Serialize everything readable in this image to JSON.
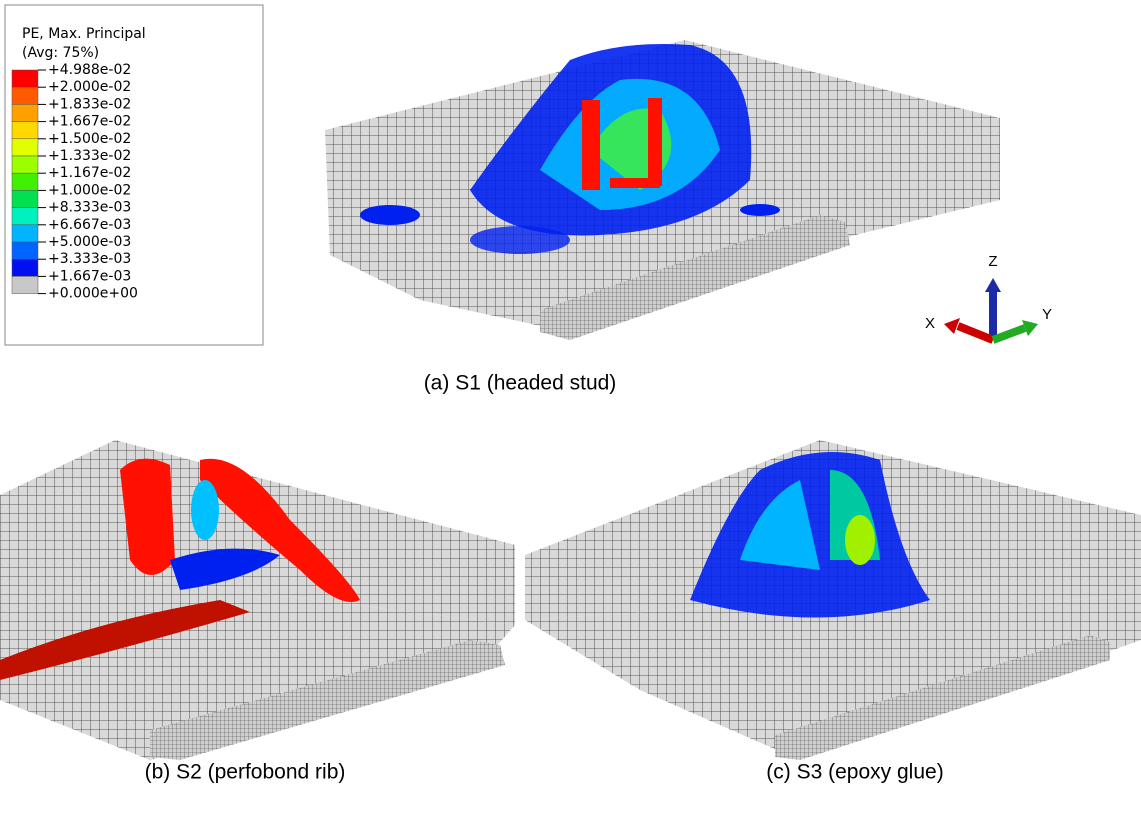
{
  "legend": {
    "title": "PE, Max. Principal",
    "subtitle": "(Avg: 75%)",
    "labels": [
      "+4.988e-02",
      "+2.000e-02",
      "+1.833e-02",
      "+1.667e-02",
      "+1.500e-02",
      "+1.333e-02",
      "+1.167e-02",
      "+1.000e-02",
      "+8.333e-03",
      "+6.667e-03",
      "+5.000e-03",
      "+3.333e-03",
      "+1.667e-03",
      "+0.000e+00"
    ],
    "colors": [
      "#ff0000",
      "#ff5a00",
      "#ffa000",
      "#ffd800",
      "#e0ff00",
      "#9cff00",
      "#40f000",
      "#00e050",
      "#00f0c0",
      "#00b4ff",
      "#0064ff",
      "#0010f0",
      "#c8c8c8"
    ]
  },
  "triad": {
    "z": "Z",
    "x": "X",
    "y": "Y"
  },
  "panels": [
    {
      "caption": "(a) S1 (headed stud)"
    },
    {
      "caption": "(b) S2 (perfobond rib)"
    },
    {
      "caption": "(c) S3 (epoxy glue)"
    }
  ]
}
